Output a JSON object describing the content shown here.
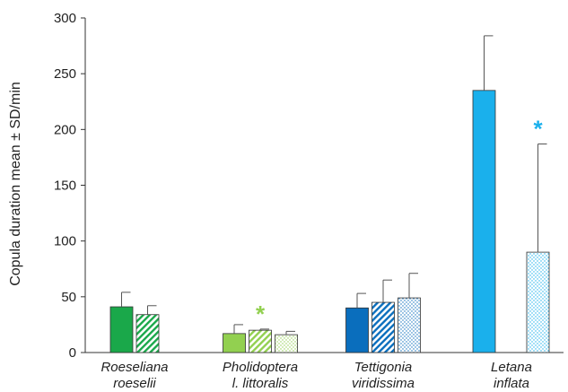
{
  "chart_data": {
    "type": "bar",
    "ylabel": "Copula duration mean ± SD/min",
    "ylim": [
      0,
      300
    ],
    "yticks": [
      0,
      50,
      100,
      150,
      200,
      250,
      300
    ],
    "grid": false,
    "categories": [
      {
        "line1": "Roeseliana",
        "line2": "roeselii"
      },
      {
        "line1": "Pholidoptera",
        "line2": "l. littoralis"
      },
      {
        "line1": "Tettigonia",
        "line2": "viridissima"
      },
      {
        "line1": "Letana",
        "line2": "inflata"
      }
    ],
    "groups": [
      {
        "bars": [
          {
            "value": 41,
            "sd": 13,
            "fill": "solid",
            "color": "#1aa84a"
          },
          {
            "value": 34,
            "sd": 8,
            "fill": "hatch",
            "color": "#1aa84a"
          }
        ]
      },
      {
        "bars": [
          {
            "value": 17,
            "sd": 8,
            "fill": "solid",
            "color": "#92d050"
          },
          {
            "value": 20,
            "sd": 1,
            "fill": "hatch",
            "color": "#92d050",
            "significance": "*"
          },
          {
            "value": 16,
            "sd": 3,
            "fill": "dots",
            "color": "#92d050"
          }
        ]
      },
      {
        "bars": [
          {
            "value": 40,
            "sd": 13,
            "fill": "solid",
            "color": "#0a6ebd"
          },
          {
            "value": 45,
            "sd": 20,
            "fill": "hatch",
            "color": "#0a6ebd"
          },
          {
            "value": 49,
            "sd": 22,
            "fill": "dots",
            "color": "#0a6ebd"
          }
        ]
      },
      {
        "bars": [
          {
            "value": 235,
            "sd": 49,
            "fill": "solid",
            "color": "#1ab0ec"
          },
          {
            "value": 90,
            "sd": 97,
            "fill": "dots",
            "color": "#1ab0ec",
            "significance": "*"
          }
        ]
      }
    ]
  }
}
